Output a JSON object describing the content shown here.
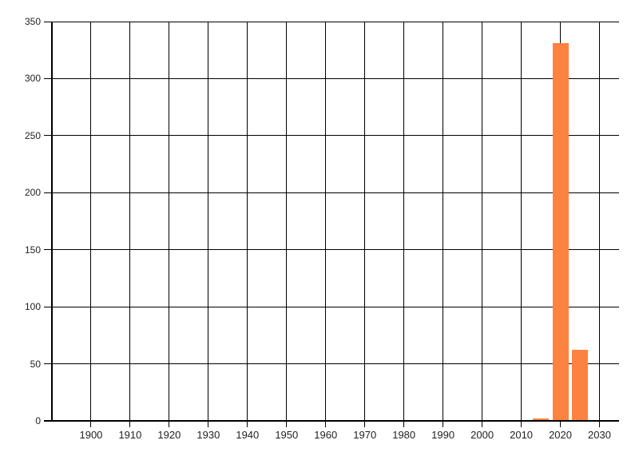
{
  "chart_data": {
    "type": "bar",
    "title": "",
    "xlabel": "",
    "ylabel": "",
    "x": [
      2015,
      2020,
      2025
    ],
    "values": [
      2,
      331,
      62
    ],
    "bar_width_years": 4.1,
    "x_range": [
      1890,
      2035
    ],
    "y_range": [
      0,
      350
    ],
    "x_ticks": [
      1900,
      1910,
      1920,
      1930,
      1940,
      1950,
      1960,
      1970,
      1980,
      1990,
      2000,
      2010,
      2020,
      2030
    ],
    "y_ticks": [
      0,
      50,
      100,
      150,
      200,
      250,
      300,
      350
    ],
    "grid": true,
    "legend": false,
    "colors": {
      "bar": "#fd8240",
      "grid": "#000000",
      "axis": "#000000",
      "label": "#222222",
      "background": "#ffffff"
    }
  }
}
